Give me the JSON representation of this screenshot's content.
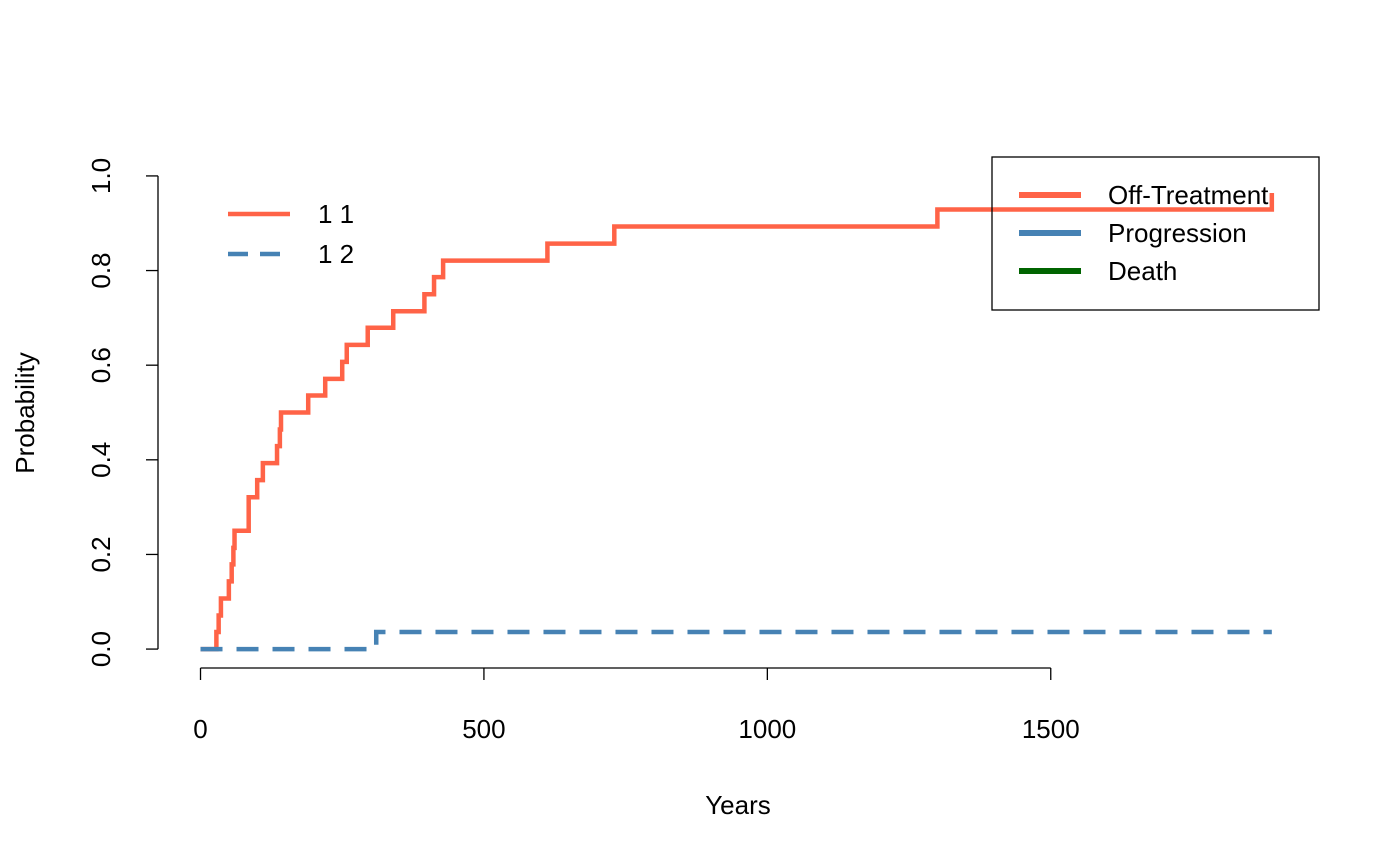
{
  "chart_data": {
    "type": "line",
    "title": "",
    "xlabel": "Years",
    "ylabel": "Probability",
    "xlim": [
      -75,
      1975
    ],
    "ylim": [
      -0.04,
      1.04
    ],
    "xticks": [
      0,
      500,
      1000,
      1500
    ],
    "xtick_labels": [
      "0",
      "500",
      "1000",
      "1500"
    ],
    "yticks": [
      0,
      0.2,
      0.4,
      0.6,
      0.8,
      1.0
    ],
    "ytick_labels": [
      "0.0",
      "0.2",
      "0.4",
      "0.6",
      "0.8",
      "1.0"
    ],
    "grid": false,
    "step": true,
    "series": [
      {
        "name": "1 1",
        "color": "#FF6347",
        "dash": "solid",
        "x": [
          0,
          28,
          32,
          36,
          42,
          50,
          55,
          58,
          60,
          65,
          85,
          88,
          100,
          110,
          125,
          135,
          140,
          142,
          190,
          220,
          250,
          258,
          262,
          295,
          340,
          395,
          412,
          428,
          612,
          730,
          1300,
          1890
        ],
        "y": [
          0,
          0.036,
          0.071,
          0.107,
          0.107,
          0.143,
          0.179,
          0.214,
          0.25,
          0.25,
          0.321,
          0.321,
          0.357,
          0.393,
          0.393,
          0.429,
          0.464,
          0.5,
          0.536,
          0.571,
          0.607,
          0.643,
          0.643,
          0.679,
          0.714,
          0.75,
          0.786,
          0.821,
          0.857,
          0.893,
          0.929,
          0.964
        ]
      },
      {
        "name": "1 2",
        "color": "#4682B4",
        "dash": "dashed",
        "x": [
          0,
          310,
          1890
        ],
        "y": [
          0,
          0.036,
          0.036
        ]
      }
    ],
    "legends": [
      {
        "placement": "top-left",
        "boxed": false,
        "entries": [
          {
            "label": "1 1",
            "color": "#FF6347",
            "dash": "solid"
          },
          {
            "label": "1 2",
            "color": "#4682B4",
            "dash": "dashed"
          }
        ]
      },
      {
        "placement": "top-right",
        "boxed": true,
        "entries": [
          {
            "label": "Off-Treatment",
            "color": "#FF6347",
            "dash": "solid"
          },
          {
            "label": "Progression",
            "color": "#4682B4",
            "dash": "solid"
          },
          {
            "label": "Death",
            "color": "#006400",
            "dash": "solid"
          }
        ]
      }
    ]
  }
}
